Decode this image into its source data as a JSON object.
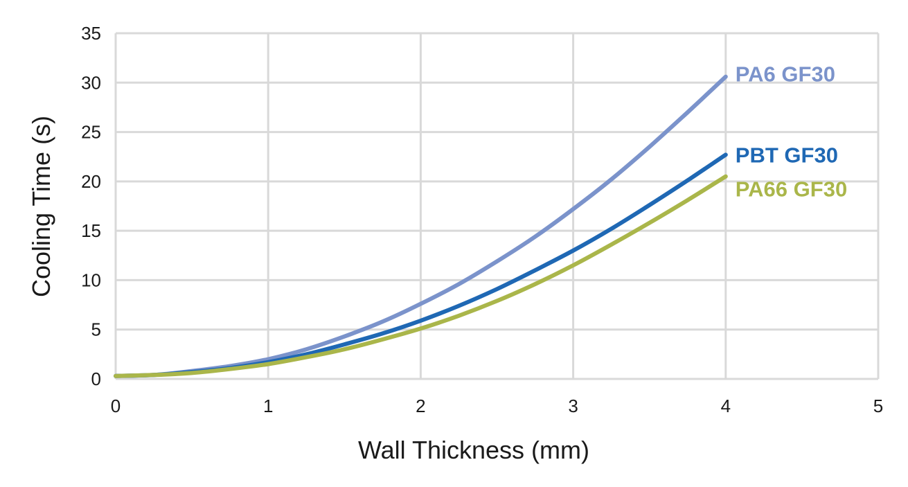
{
  "chart_data": {
    "type": "line",
    "xlabel": "Wall Thickness (mm)",
    "ylabel": "Cooling Time (s)",
    "xlim": [
      0,
      5
    ],
    "ylim": [
      0,
      35
    ],
    "x_ticks": [
      "0",
      "1",
      "2",
      "3",
      "4",
      "5"
    ],
    "y_ticks": [
      "0",
      "5",
      "10",
      "15",
      "20",
      "25",
      "30",
      "35"
    ],
    "grid": true,
    "legend": "inline labels at line ends",
    "x": [
      0,
      0.25,
      0.5,
      0.75,
      1,
      1.25,
      1.5,
      1.75,
      2,
      2.25,
      2.5,
      2.75,
      3,
      3.25,
      3.5,
      3.75,
      4
    ],
    "series": [
      {
        "name": "PA6 GF30",
        "color": "#7b93cb",
        "values": [
          0.3,
          0.4,
          0.8,
          1.3,
          2.0,
          3.0,
          4.3,
          5.8,
          7.6,
          9.6,
          11.9,
          14.4,
          17.2,
          20.2,
          23.5,
          27.0,
          30.6
        ]
      },
      {
        "name": "PBT GF30",
        "color": "#1f68b4",
        "values": [
          0.3,
          0.4,
          0.7,
          1.1,
          1.7,
          2.5,
          3.5,
          4.6,
          5.9,
          7.4,
          9.1,
          11.0,
          13.0,
          15.2,
          17.6,
          20.1,
          22.7
        ]
      },
      {
        "name": "PA66 GF30",
        "color": "#aab64a",
        "values": [
          0.3,
          0.4,
          0.6,
          1.0,
          1.5,
          2.2,
          3.0,
          4.0,
          5.1,
          6.4,
          7.9,
          9.6,
          11.5,
          13.6,
          15.8,
          18.1,
          20.5
        ]
      }
    ]
  }
}
